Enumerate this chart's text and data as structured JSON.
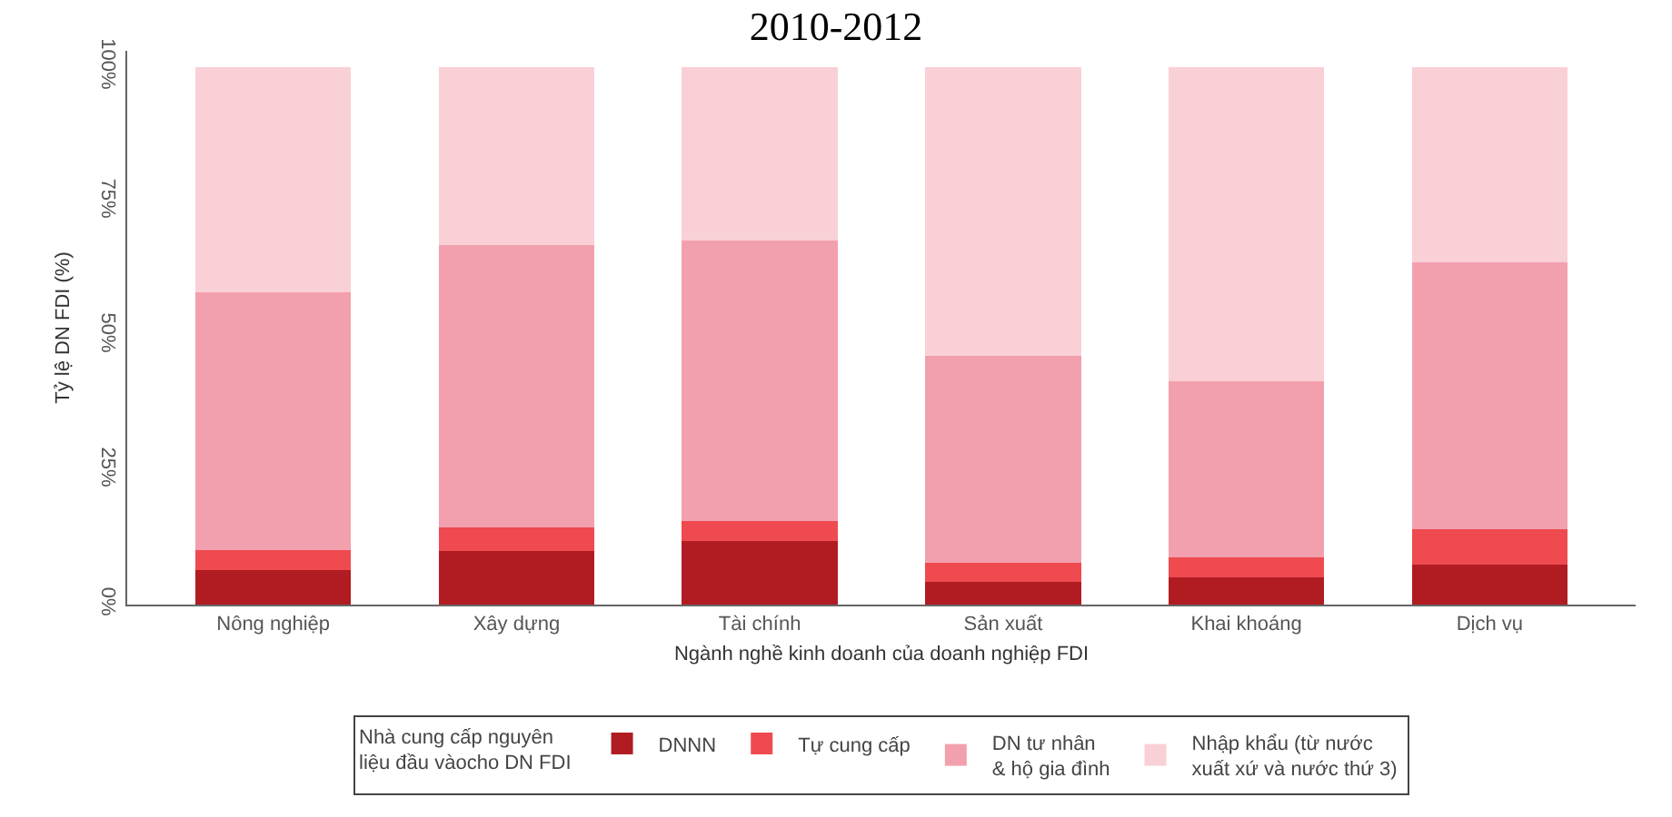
{
  "chart_data": {
    "type": "bar",
    "title": "2010-2012",
    "xlabel": "Ngành nghề kinh doanh của doanh nghiệp FDI",
    "ylabel": "Tỷ lệ DN FDI (%)",
    "legend_title": "Nhà cung cấp nguyên\nliệu đầu vàocho DN FDI",
    "categories": [
      "Nông nghiệp",
      "Xây dựng",
      "Tài chính",
      "Sản xuất",
      "Khai khoáng",
      "Dịch vụ"
    ],
    "stacked": true,
    "series": [
      {
        "name": "DNNN",
        "color": "#b01c22",
        "values": [
          6.5,
          9.9,
          11.8,
          4.3,
          5.0,
          7.5
        ]
      },
      {
        "name": "Tự cung cấp",
        "color": "#ee4a4f",
        "values": [
          3.7,
          4.4,
          3.7,
          3.5,
          3.7,
          6.5
        ]
      },
      {
        "name": "DN tư nhân\n& hộ gia đình",
        "color": "#f3a0ae",
        "values": [
          47.9,
          52.5,
          52.2,
          38.5,
          32.9,
          49.7
        ]
      },
      {
        "name": "Nhập khẩu (từ nước\nxuất xứ và nước thứ 3)",
        "color": "#f9d0d6",
        "values": [
          41.9,
          33.2,
          32.3,
          53.7,
          58.4,
          36.3
        ]
      }
    ],
    "ylim": [
      0,
      103
    ],
    "yticks": [
      {
        "value": 0,
        "label": "0%"
      },
      {
        "value": 25,
        "label": "25%"
      },
      {
        "value": 50,
        "label": "50%"
      },
      {
        "value": 75,
        "label": "75%"
      },
      {
        "value": 100,
        "label": "100%"
      }
    ],
    "grid": false,
    "legend": "bottom"
  }
}
